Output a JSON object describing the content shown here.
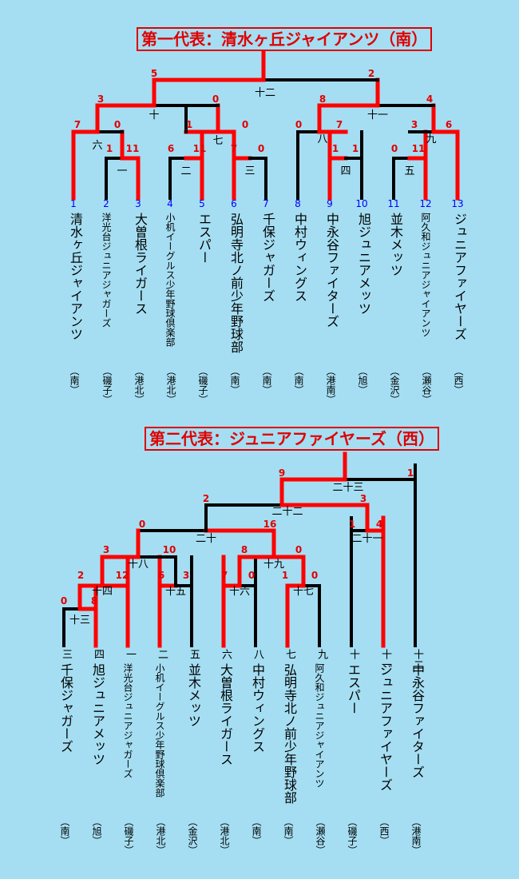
{
  "sections": [
    {
      "title": "第一代表：清水ヶ丘ジャイアンツ（南）",
      "teams": [
        {
          "num": "1",
          "name": "清水ヶ丘ジャイアンツ",
          "area": "（南）"
        },
        {
          "num": "2",
          "name": "洋光台ジュニアジャガーズ",
          "area": "（磯子）"
        },
        {
          "num": "3",
          "name": "大曽根ライガース",
          "area": "（港北）"
        },
        {
          "num": "4",
          "name": "小机イーグルス少年野球倶楽部",
          "area": "（港北）"
        },
        {
          "num": "5",
          "name": "エスパー",
          "area": "（磯子）"
        },
        {
          "num": "6",
          "name": "弘明寺北ノ前少年野球部",
          "area": "（南）"
        },
        {
          "num": "7",
          "name": "千保ジャガーズ",
          "area": "（南）"
        },
        {
          "num": "8",
          "name": "中村ウィングス",
          "area": "（南）"
        },
        {
          "num": "9",
          "name": "中永谷ファイターズ",
          "area": "（港南）"
        },
        {
          "num": "10",
          "name": "旭ジュニアメッツ",
          "area": "（旭）"
        },
        {
          "num": "11",
          "name": "並木メッツ",
          "area": "（金沢）"
        },
        {
          "num": "12",
          "name": "阿久和ジュニアジャイアンツ",
          "area": "（瀬谷）"
        },
        {
          "num": "13",
          "name": "ジュニアファイヤーズ",
          "area": "（西）"
        }
      ],
      "games": [
        "一",
        "二",
        "三",
        "四",
        "五",
        "六",
        "七",
        "八",
        "九",
        "十",
        "十一",
        "十二"
      ],
      "scores": [
        "5",
        "2",
        "3",
        "0",
        "8",
        "4",
        "7",
        "0",
        "1",
        "11",
        "0",
        "6",
        "0",
        "7",
        "1",
        "0",
        "11",
        "6",
        "11",
        "7",
        "0",
        "1",
        "3",
        "1",
        "0",
        "11"
      ]
    },
    {
      "title": "第二代表：ジュニアファイヤーズ（西）",
      "teams": [
        {
          "num": "三",
          "name": "千保ジャガーズ",
          "area": "（南）"
        },
        {
          "num": "四",
          "name": "旭ジュニアメッツ",
          "area": "（旭）"
        },
        {
          "num": "一",
          "name": "洋光台ジュニアジャガーズ",
          "area": "（磯子）"
        },
        {
          "num": "二",
          "name": "小机イーグルス少年野球倶楽部",
          "area": "（港北）"
        },
        {
          "num": "五",
          "name": "並木メッツ",
          "area": "（金沢）"
        },
        {
          "num": "六",
          "name": "大曽根ライガース",
          "area": "（港北）"
        },
        {
          "num": "八",
          "name": "中村ウィングス",
          "area": "（南）"
        },
        {
          "num": "七",
          "name": "弘明寺北ノ前少年野球部",
          "area": "（南）"
        },
        {
          "num": "九",
          "name": "阿久和ジュニアジャイアンツ",
          "area": "（瀬谷）"
        },
        {
          "num": "十",
          "name": "エスパー",
          "area": "（磯子）"
        },
        {
          "num": "十一",
          "name": "ジュニアファイヤーズ",
          "area": "（西）"
        },
        {
          "num": "十二",
          "name": "中永谷ファイターズ",
          "area": "（港南）"
        }
      ],
      "games": [
        "十三",
        "十四",
        "十五",
        "十六",
        "十七",
        "十八",
        "十九",
        "二十",
        "二十一",
        "二十二",
        "二十三"
      ],
      "scores": [
        "9",
        "1",
        "2",
        "3",
        "0",
        "16",
        "1",
        "4",
        "3",
        "10",
        "8",
        "0",
        "2",
        "12",
        "6",
        "3",
        "7",
        "0",
        "1",
        "0",
        "0",
        "8"
      ]
    }
  ],
  "colors": {
    "background": "#a5def2",
    "win": "#ff0000",
    "line": "#000000",
    "title": "#e00000",
    "team_num": "#0000ff",
    "score": "#e00000"
  }
}
